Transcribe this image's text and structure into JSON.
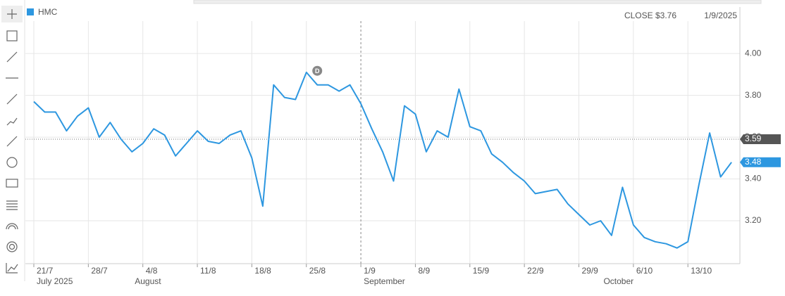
{
  "chart_data": {
    "type": "line",
    "legend": "HMC",
    "info": {
      "close": "CLOSE $3.76",
      "date": "1/9/2025"
    },
    "categories": [
      "21/7",
      null,
      null,
      null,
      null,
      "28/7",
      null,
      null,
      null,
      null,
      "4/8",
      null,
      null,
      null,
      null,
      "11/8",
      null,
      null,
      null,
      null,
      "18/8",
      null,
      null,
      null,
      null,
      "25/8",
      null,
      null,
      null,
      null,
      "1/9",
      null,
      null,
      null,
      null,
      "8/9",
      null,
      null,
      null,
      null,
      "15/9",
      null,
      null,
      null,
      null,
      "22/9",
      null,
      null,
      null,
      null,
      "29/9",
      null,
      null,
      null,
      null,
      "6/10",
      null,
      null,
      null,
      null,
      "13/10",
      null,
      null,
      null,
      null
    ],
    "months": [
      {
        "label": "July 2025",
        "index": 0
      },
      {
        "label": "August",
        "index": 9
      },
      {
        "label": "September",
        "index": 30
      },
      {
        "label": "October",
        "index": 52
      }
    ],
    "series": [
      {
        "name": "HMC",
        "color": "#2d97e0",
        "values": [
          3.77,
          3.72,
          3.72,
          3.63,
          3.7,
          3.74,
          3.6,
          3.67,
          3.59,
          3.53,
          3.57,
          3.64,
          3.61,
          3.51,
          3.57,
          3.63,
          3.58,
          3.57,
          3.61,
          3.63,
          3.5,
          3.27,
          3.85,
          3.79,
          3.78,
          3.91,
          3.85,
          3.85,
          3.82,
          3.85,
          3.76,
          3.64,
          3.53,
          3.39,
          3.75,
          3.71,
          3.53,
          3.63,
          3.6,
          3.83,
          3.65,
          3.63,
          3.52,
          3.48,
          3.43,
          3.39,
          3.33,
          3.34,
          3.35,
          3.28,
          3.23,
          3.18,
          3.2,
          3.13,
          3.36,
          3.18,
          3.12,
          3.1,
          3.09,
          3.07,
          3.1,
          3.37,
          3.62,
          3.41,
          3.48
        ]
      }
    ],
    "annotations": [
      {
        "label": "D",
        "index": 26
      }
    ],
    "crosshair_index": 30,
    "markers": [
      {
        "value": 3.59,
        "label": "3.59",
        "color": "#555555"
      },
      {
        "value": 3.48,
        "label": "3.48",
        "color": "#2d97e0"
      }
    ],
    "ylim": [
      2.995,
      4.155
    ],
    "yticks": [
      {
        "value": 3.2,
        "label": "3.20"
      },
      {
        "value": 3.4,
        "label": "3.40"
      },
      {
        "value": 3.6,
        "label": "3.60"
      },
      {
        "value": 3.8,
        "label": "3.80"
      },
      {
        "value": 4.0,
        "label": "4.00"
      }
    ],
    "grid": true
  }
}
